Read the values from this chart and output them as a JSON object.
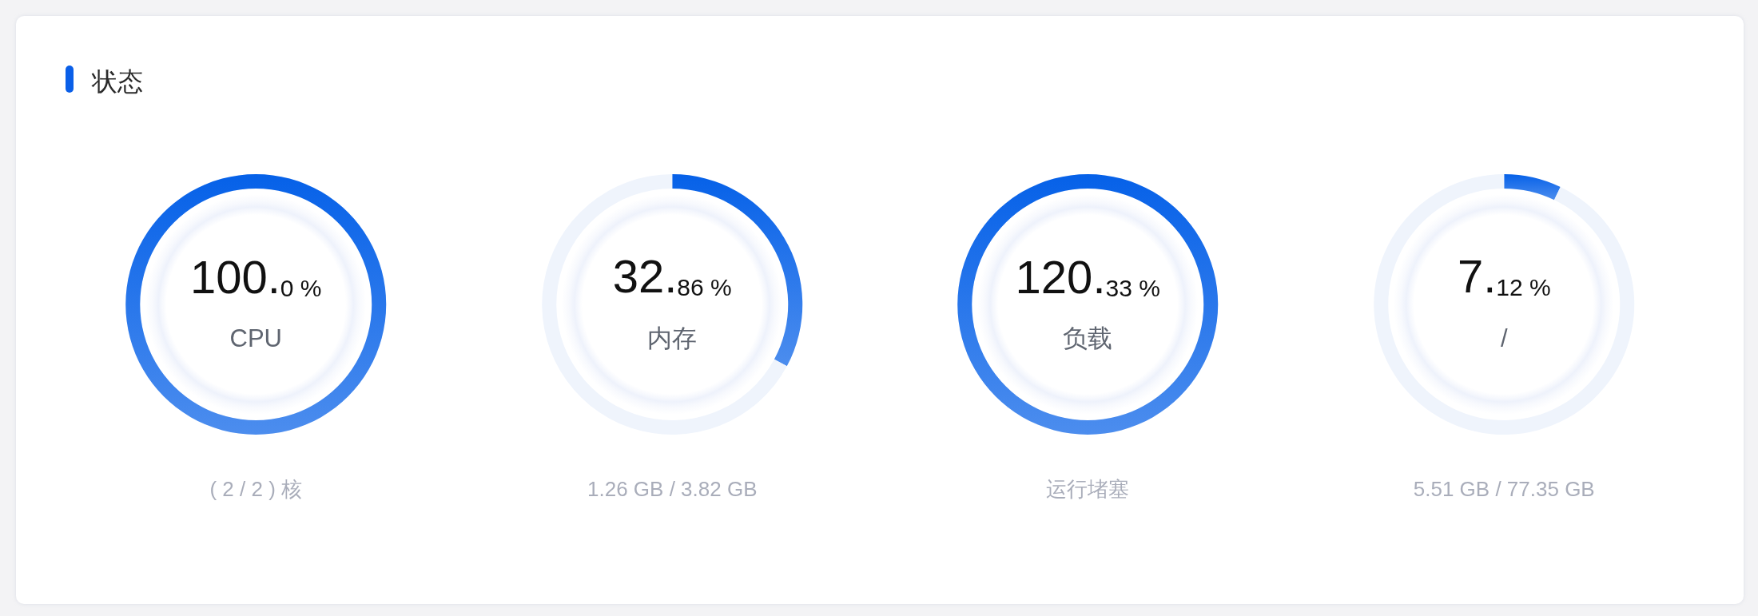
{
  "chart_data": [
    {
      "type": "other",
      "title": "状态",
      "categories": [
        "CPU"
      ],
      "values": [
        100.0
      ],
      "value_labels": [
        "100.0 %"
      ],
      "color": "#2977eb",
      "annotations": [
        "( 2 / 2 ) 核"
      ]
    },
    {
      "type": "donut",
      "categories": [
        "内存",
        null
      ],
      "values": [
        32.86,
        67.14
      ],
      "value_labels": [
        "32.86 %",
        null
      ],
      "colors": [
        "#2977eb",
        "#eff4fc"
      ],
      "annotations": [
        "1.26 GB / 3.82 GB"
      ]
    },
    {
      "type": "other",
      "categories": [
        "负载"
      ],
      "values": [
        120.33
      ],
      "value_labels": [
        "120.33 %"
      ],
      "color": "#2977eb",
      "annotations": [
        "运行堵塞"
      ]
    },
    {
      "type": "donut",
      "categories": [
        "/",
        null
      ],
      "values": [
        7.12,
        92.88
      ],
      "value_labels": [
        "7.12 %",
        null
      ],
      "colors": [
        "#2977eb",
        "#eff4fc"
      ],
      "annotations": [
        "5.51 GB / 77.35 GB"
      ]
    }
  ]
}
